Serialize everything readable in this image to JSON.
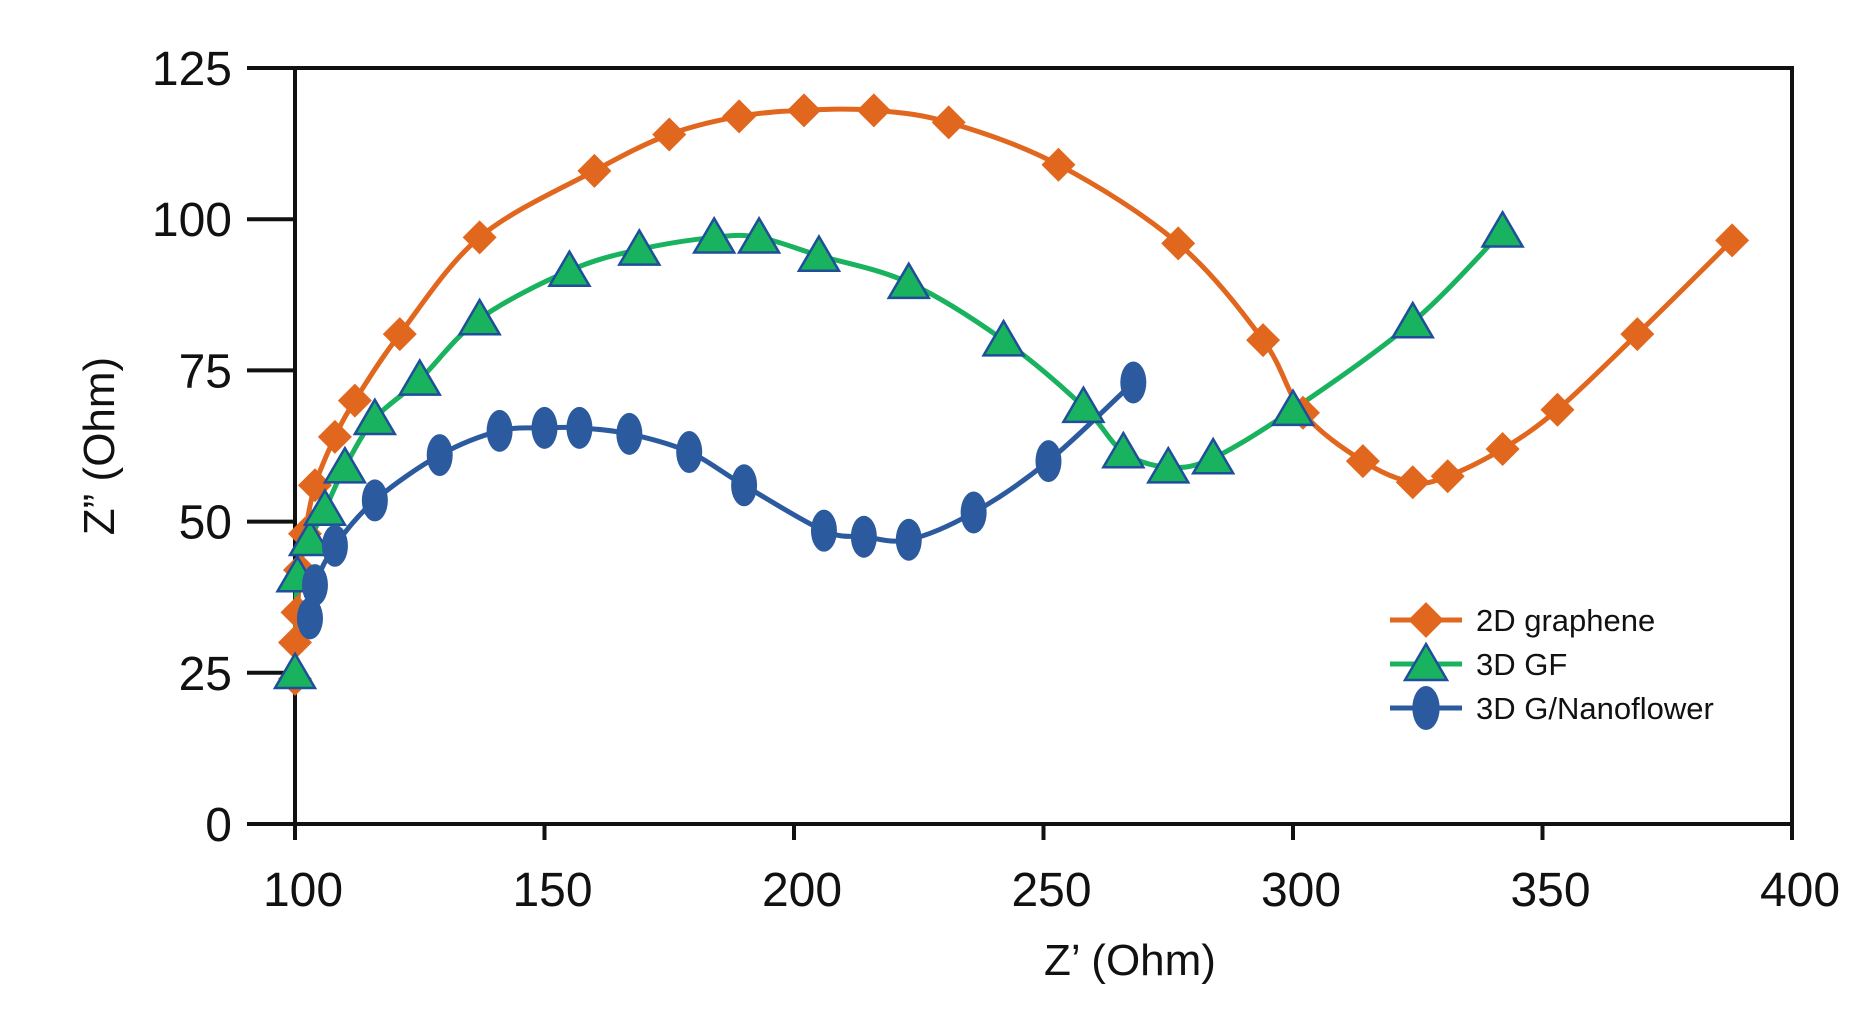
{
  "chart_data": {
    "type": "line",
    "title": "",
    "xlabel": "Z’ (Ohm)",
    "ylabel": "Z” (Ohm)",
    "xlim": [
      100,
      400
    ],
    "ylim": [
      0,
      125
    ],
    "xticks": [
      100,
      150,
      200,
      250,
      300,
      350,
      400
    ],
    "yticks": [
      0,
      25,
      50,
      75,
      100,
      125
    ],
    "xtick_labels": [
      "100",
      "150",
      "200",
      "250",
      "300",
      "350",
      "400"
    ],
    "ytick_labels": [
      "0",
      "25",
      "50",
      "75",
      "100",
      "125"
    ],
    "grid": false,
    "legend_position": "right-center",
    "series": [
      {
        "name": "2D graphene",
        "color": "#E2671E",
        "marker": "diamond",
        "points": [
          [
            100,
            24
          ],
          [
            100,
            30
          ],
          [
            100.5,
            35
          ],
          [
            101,
            42
          ],
          [
            102,
            48
          ],
          [
            104,
            56
          ],
          [
            108,
            64
          ],
          [
            112,
            70
          ],
          [
            121,
            81
          ],
          [
            137,
            97
          ],
          [
            160,
            108
          ],
          [
            175,
            114
          ],
          [
            189,
            117
          ],
          [
            202,
            118
          ],
          [
            216,
            118
          ],
          [
            231,
            116
          ],
          [
            253,
            109
          ],
          [
            277,
            96
          ],
          [
            294,
            80
          ],
          [
            302,
            68
          ],
          [
            314,
            60
          ],
          [
            324,
            56.5
          ],
          [
            331,
            57.5
          ],
          [
            342,
            62
          ],
          [
            353,
            68.5
          ],
          [
            369,
            81
          ],
          [
            388,
            96.5
          ]
        ]
      },
      {
        "name": "3D GF",
        "color": "#19B25E",
        "marker": "triangle",
        "points": [
          [
            100,
            25
          ],
          [
            100.5,
            41
          ],
          [
            103,
            47
          ],
          [
            106,
            52
          ],
          [
            110,
            59
          ],
          [
            116,
            67
          ],
          [
            125,
            73.5
          ],
          [
            137,
            83.5
          ],
          [
            155,
            91.5
          ],
          [
            169,
            95
          ],
          [
            184,
            97
          ],
          [
            193,
            97
          ],
          [
            205,
            94
          ],
          [
            223,
            89.5
          ],
          [
            242,
            80
          ],
          [
            258,
            69
          ],
          [
            266,
            61.5
          ],
          [
            275,
            59
          ],
          [
            284,
            60.5
          ],
          [
            300,
            68.5
          ],
          [
            324,
            83
          ],
          [
            342,
            98
          ]
        ]
      },
      {
        "name": "3D G/Nanoflower",
        "color": "#2C5A9E",
        "marker": "ellipse",
        "points": [
          [
            103,
            34
          ],
          [
            104,
            39.5
          ],
          [
            108,
            46
          ],
          [
            116,
            53.5
          ],
          [
            129,
            61
          ],
          [
            141,
            65
          ],
          [
            150,
            65.5
          ],
          [
            157,
            65.5
          ],
          [
            167,
            64.5
          ],
          [
            179,
            61.5
          ],
          [
            190,
            56
          ],
          [
            206,
            48.5
          ],
          [
            214,
            47.5
          ],
          [
            223,
            47
          ],
          [
            236,
            51.5
          ],
          [
            251,
            60
          ],
          [
            268,
            73
          ]
        ]
      }
    ]
  }
}
